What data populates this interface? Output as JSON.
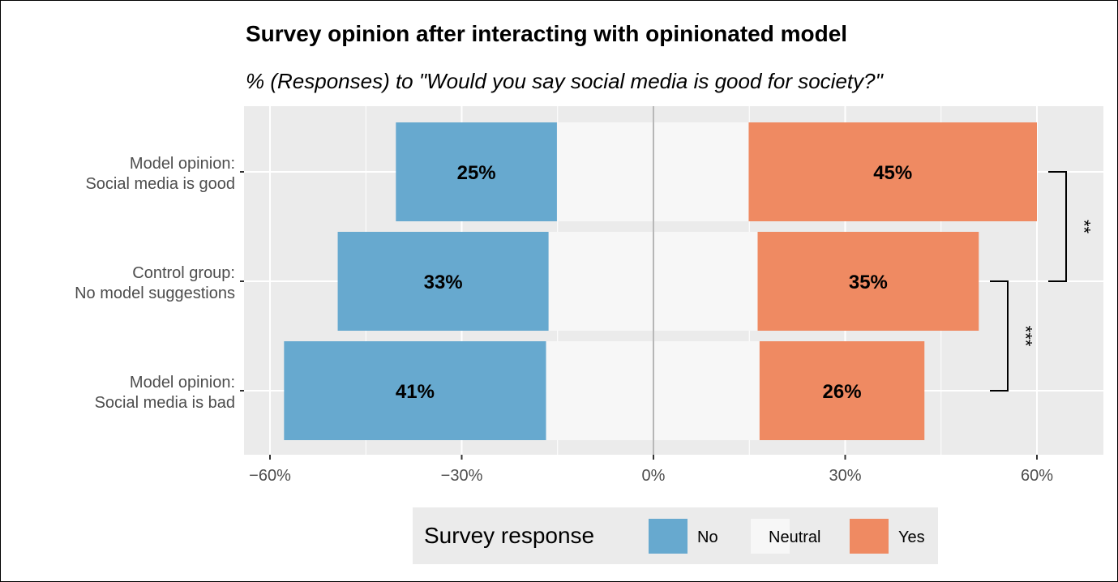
{
  "chart_data": {
    "type": "bar",
    "orientation": "horizontal",
    "layout": "diverging",
    "title": "Survey opinion after interacting with opinionated model",
    "subtitle": "% (Responses) to \"Would you say social media is good for society?\"",
    "xlabel": "",
    "ylabel": "",
    "xlim": [
      -60,
      60
    ],
    "x_ticks": [
      -60,
      -30,
      0,
      30,
      60
    ],
    "x_tick_labels": [
      "−60%",
      "−30%",
      "0%",
      "30%",
      "60%"
    ],
    "categories": [
      [
        "Model opinion:",
        "Social media is good"
      ],
      [
        "Control group:",
        "No model suggestions"
      ],
      [
        "Model opinion:",
        "Social media is bad"
      ]
    ],
    "bars": [
      {
        "no_start": -40.3,
        "no_end": -15.1,
        "neutral_start": -15.1,
        "neutral_end": 14.9,
        "yes_start": 14.9,
        "yes_end": 60.0
      },
      {
        "no_start": -49.4,
        "no_end": -16.4,
        "neutral_start": -16.4,
        "neutral_end": 16.3,
        "yes_start": 16.3,
        "yes_end": 50.9
      },
      {
        "no_start": -57.8,
        "no_end": -16.8,
        "neutral_start": -16.8,
        "neutral_end": 16.6,
        "yes_start": 16.6,
        "yes_end": 42.4
      }
    ],
    "series": [
      {
        "name": "No",
        "values": [
          25,
          33,
          41
        ],
        "labels": [
          "25%",
          "33%",
          "41%"
        ],
        "color": "#67a9cf"
      },
      {
        "name": "Neutral",
        "color": "#f7f7f7"
      },
      {
        "name": "Yes",
        "values": [
          45,
          35,
          26
        ],
        "labels": [
          "45%",
          "35%",
          "26%"
        ],
        "color": "#ef8a62"
      }
    ],
    "significance": [
      {
        "between": [
          0,
          1
        ],
        "label": "**"
      },
      {
        "between": [
          1,
          2
        ],
        "label": "***"
      }
    ],
    "legend": {
      "title": "Survey response",
      "position": "bottom",
      "items": [
        "No",
        "Neutral",
        "Yes"
      ]
    },
    "grid": true,
    "panel_color": "#ebebeb"
  }
}
